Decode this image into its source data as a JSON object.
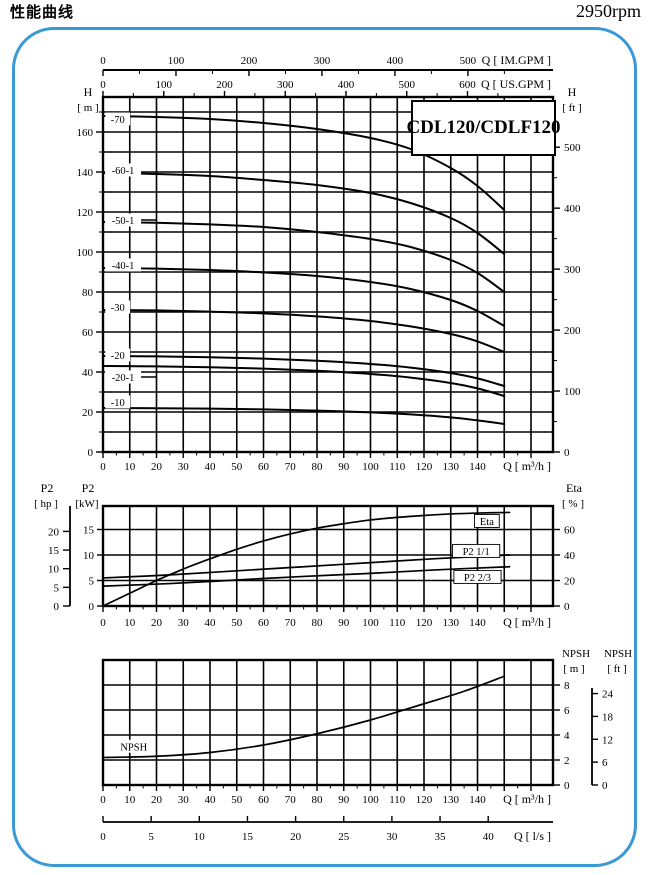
{
  "header": {
    "title": "性能曲线",
    "rpm": "2950rpm"
  },
  "model_label": "CDL120/CDLF120",
  "colors": {
    "frame_blue": "#3b9ad6",
    "ink": "#000000"
  },
  "chart_data": [
    {
      "id": "head_capacity",
      "type": "line",
      "title": "CDL120/CDLF120",
      "x_bottom": {
        "label": "Q [ m³/h ]",
        "ticks": [
          0,
          10,
          20,
          30,
          40,
          50,
          60,
          70,
          80,
          90,
          100,
          110,
          120,
          130,
          140
        ],
        "range": [
          0,
          168
        ]
      },
      "x_top_im": {
        "label": "Q [ IM.GPM ]",
        "ticks": [
          0,
          100,
          200,
          300,
          400,
          500
        ]
      },
      "x_top_us": {
        "label": "Q [ US.GPM ]",
        "ticks": [
          0,
          100,
          200,
          300,
          400,
          500,
          600
        ]
      },
      "y_left": {
        "label_1": "H",
        "label_2": "[ m ]",
        "ticks": [
          0,
          20,
          40,
          60,
          80,
          100,
          120,
          140,
          160
        ],
        "range": [
          0,
          177.5
        ]
      },
      "y_right": {
        "label_1": "H",
        "label_2": "[ ft ]",
        "ticks": [
          0,
          100,
          200,
          300,
          400,
          500
        ]
      },
      "grid": "on",
      "series": [
        {
          "name": "-70",
          "label_pos": [
            5.5,
            166.5
          ],
          "leader": 0,
          "points": [
            [
              0,
              168
            ],
            [
              20,
              167.5
            ],
            [
              40,
              166.5
            ],
            [
              60,
              164.5
            ],
            [
              80,
              161.5
            ],
            [
              100,
              157
            ],
            [
              115,
              151.5
            ],
            [
              130,
              142
            ],
            [
              140,
              133
            ],
            [
              150,
              121
            ]
          ]
        },
        {
          "name": "-60-1",
          "label_pos": [
            7.5,
            141
          ],
          "leader": 0,
          "points": [
            [
              0,
              139.5
            ],
            [
              20,
              139
            ],
            [
              40,
              138
            ],
            [
              60,
              136
            ],
            [
              80,
              133.5
            ],
            [
              100,
              129.5
            ],
            [
              115,
              124.5
            ],
            [
              130,
              117
            ],
            [
              140,
              109.5
            ],
            [
              150,
              99
            ]
          ]
        },
        {
          "name": "-50-1",
          "label_pos": [
            7.5,
            116
          ],
          "leader": 16,
          "points": [
            [
              0,
              115
            ],
            [
              20,
              114.6
            ],
            [
              40,
              113.8
            ],
            [
              60,
              112.5
            ],
            [
              80,
              110
            ],
            [
              100,
              106.5
            ],
            [
              115,
              102.5
            ],
            [
              130,
              96
            ],
            [
              140,
              89.5
            ],
            [
              150,
              80
            ]
          ]
        },
        {
          "name": "-40-1",
          "label_pos": [
            7.5,
            93.5
          ],
          "leader": 0,
          "points": [
            [
              0,
              92
            ],
            [
              20,
              91.7
            ],
            [
              40,
              91
            ],
            [
              60,
              89.8
            ],
            [
              80,
              88
            ],
            [
              100,
              85
            ],
            [
              115,
              81.5
            ],
            [
              130,
              76
            ],
            [
              140,
              70.5
            ],
            [
              150,
              63
            ]
          ]
        },
        {
          "name": "-30",
          "label_pos": [
            5.5,
            72.5
          ],
          "leader": 0,
          "points": [
            [
              0,
              71
            ],
            [
              20,
              70.8
            ],
            [
              40,
              70.2
            ],
            [
              60,
              69.3
            ],
            [
              80,
              67.8
            ],
            [
              100,
              65.5
            ],
            [
              115,
              62.8
            ],
            [
              130,
              59
            ],
            [
              140,
              55.3
            ],
            [
              150,
              50
            ]
          ]
        },
        {
          "name": "-20",
          "label_pos": [
            5.5,
            48.5
          ],
          "leader": 0,
          "points": [
            [
              0,
              48
            ],
            [
              20,
              47.8
            ],
            [
              40,
              47.4
            ],
            [
              60,
              46.7
            ],
            [
              80,
              45.6
            ],
            [
              100,
              44
            ],
            [
              115,
              42.2
            ],
            [
              130,
              39.5
            ],
            [
              140,
              36.8
            ],
            [
              150,
              33
            ]
          ]
        },
        {
          "name": "-20-1",
          "label_pos": [
            7.5,
            37.5
          ],
          "leader": 16,
          "points": [
            [
              0,
              43
            ],
            [
              20,
              42.8
            ],
            [
              40,
              42.4
            ],
            [
              60,
              41.7
            ],
            [
              80,
              40.6
            ],
            [
              100,
              39
            ],
            [
              115,
              37.2
            ],
            [
              130,
              34.5
            ],
            [
              140,
              31.8
            ],
            [
              150,
              28
            ]
          ]
        },
        {
          "name": "-10",
          "label_pos": [
            5.5,
            25
          ],
          "leader": 0,
          "points": [
            [
              0,
              22
            ],
            [
              20,
              21.9
            ],
            [
              40,
              21.7
            ],
            [
              60,
              21.3
            ],
            [
              80,
              20.7
            ],
            [
              100,
              19.8
            ],
            [
              115,
              18.8
            ],
            [
              130,
              17.3
            ],
            [
              140,
              15.8
            ],
            [
              150,
              14
            ]
          ]
        }
      ]
    },
    {
      "id": "power_efficiency",
      "type": "line",
      "x_bottom": {
        "label": "Q [ m³/h ]",
        "ticks": [
          0,
          10,
          20,
          30,
          40,
          50,
          60,
          70,
          80,
          90,
          100,
          110,
          120,
          130,
          140
        ],
        "range": [
          0,
          168
        ]
      },
      "y_hp": {
        "label_1": "P2",
        "label_2": "[ hp ]",
        "ticks": [
          0,
          5,
          10,
          15,
          20
        ]
      },
      "y_kw": {
        "label_1": "P2",
        "label_2": "[kW]",
        "ticks": [
          0,
          5,
          10,
          15
        ],
        "range": [
          0,
          19.6
        ]
      },
      "y_eta": {
        "label_1": "Eta",
        "label_2": "[ % ]",
        "ticks": [
          0,
          20,
          40,
          60
        ],
        "range": [
          0,
          78
        ]
      },
      "grid": "on",
      "series": [
        {
          "name": "Eta",
          "unit": "eta",
          "boxed": true,
          "label_pos": [
            143.5,
            66.7
          ],
          "points": [
            [
              0,
              0
            ],
            [
              10,
              10
            ],
            [
              20,
              20
            ],
            [
              30,
              29
            ],
            [
              40,
              37
            ],
            [
              50,
              44.5
            ],
            [
              60,
              51
            ],
            [
              70,
              56.5
            ],
            [
              80,
              61
            ],
            [
              90,
              64.5
            ],
            [
              100,
              67.5
            ],
            [
              110,
              69.5
            ],
            [
              120,
              71
            ],
            [
              130,
              72.2
            ],
            [
              140,
              72.9
            ],
            [
              152,
              73.4
            ]
          ]
        },
        {
          "name": "P2  1/1",
          "unit": "kw",
          "boxed": true,
          "label_pos": [
            139.5,
            10.8
          ],
          "points": [
            [
              0,
              5.5
            ],
            [
              25,
              6.1
            ],
            [
              50,
              6.9
            ],
            [
              75,
              7.7
            ],
            [
              100,
              8.5
            ],
            [
              125,
              9.3
            ],
            [
              152,
              10
            ]
          ]
        },
        {
          "name": "P2  2/3",
          "unit": "kw",
          "boxed": true,
          "label_pos": [
            140,
            5.7
          ],
          "points": [
            [
              0,
              3.9
            ],
            [
              25,
              4.4
            ],
            [
              50,
              5.1
            ],
            [
              75,
              5.8
            ],
            [
              100,
              6.4
            ],
            [
              125,
              7.1
            ],
            [
              152,
              7.7
            ]
          ]
        }
      ]
    },
    {
      "id": "npsh",
      "type": "line",
      "x_bottom": {
        "label": "Q [ m³/h ]",
        "ticks": [
          0,
          10,
          20,
          30,
          40,
          50,
          60,
          70,
          80,
          90,
          100,
          110,
          120,
          130,
          140
        ],
        "range": [
          0,
          168
        ]
      },
      "x_ls": {
        "label": "Q [ l/s ]",
        "ticks": [
          0,
          5,
          10,
          15,
          20,
          25,
          30,
          35,
          40
        ]
      },
      "y_m": {
        "label_1": "NPSH",
        "label_2": "[ m ]",
        "ticks": [
          0,
          2,
          4,
          6,
          8
        ],
        "range": [
          0,
          10
        ]
      },
      "y_ft": {
        "label_1": "NPSH",
        "label_2": "[ ft ]",
        "ticks": [
          0,
          6,
          12,
          18,
          24
        ]
      },
      "grid": "on",
      "series": [
        {
          "name": "NPSH",
          "unit": "m",
          "boxed": false,
          "label_pos": [
            11.5,
            3.1
          ],
          "points": [
            [
              0,
              2.2
            ],
            [
              20,
              2.3
            ],
            [
              40,
              2.6
            ],
            [
              60,
              3.2
            ],
            [
              80,
              4.1
            ],
            [
              100,
              5.2
            ],
            [
              120,
              6.5
            ],
            [
              135,
              7.5
            ],
            [
              150,
              8.7
            ]
          ]
        }
      ]
    }
  ]
}
